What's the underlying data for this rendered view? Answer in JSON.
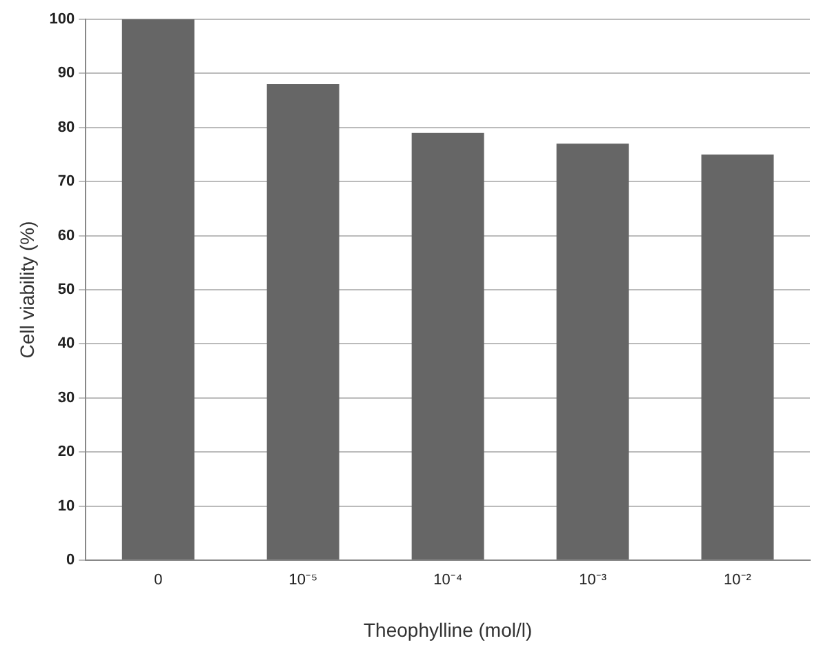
{
  "chart_data": {
    "type": "bar",
    "xlabel": "Theophylline (mol/l)",
    "ylabel": "Cell viability (%)",
    "categories": [
      "0",
      "10⁻⁵",
      "10⁻⁴",
      "10⁻³",
      "10⁻²"
    ],
    "values": [
      100,
      88,
      79,
      77,
      75
    ],
    "color": "#666666",
    "ylim": [
      0,
      100
    ],
    "yticks": [
      0,
      10,
      20,
      30,
      40,
      50,
      60,
      70,
      80,
      90,
      100
    ],
    "grid": "y",
    "legend": false
  }
}
